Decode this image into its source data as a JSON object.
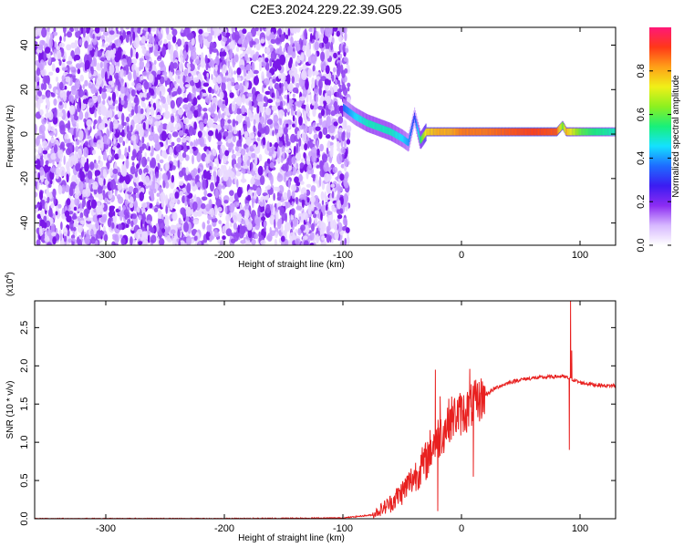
{
  "figure": {
    "title": "C2E3.2024.229.22.39.G05"
  },
  "colors": {
    "spectrogram_noise": "#7a18e8",
    "snr_line": "#e8201f",
    "colormap": [
      "#ffffff",
      "#d7b8ff",
      "#8c2cf2",
      "#3b1cf2",
      "#1e6cff",
      "#14e2ff",
      "#18f07a",
      "#8cf020",
      "#f0f018",
      "#ffa018",
      "#ff3818",
      "#ff1878"
    ]
  },
  "chart_data": [
    {
      "type": "heatmap",
      "xlabel": "Height of straight line (km)",
      "ylabel": "Frequency (Hz)",
      "xlim": [
        -360,
        130
      ],
      "ylim": [
        -50,
        48
      ],
      "xticks": [
        -300,
        -200,
        -100,
        0,
        100
      ],
      "yticks": [
        -40,
        -20,
        0,
        20,
        40
      ],
      "grid": false,
      "noise_region": {
        "x": [
          -360,
          -95
        ],
        "y": [
          -50,
          48
        ],
        "amplitude": 0.15
      },
      "signal_trace": {
        "x": [
          -100,
          -90,
          -80,
          -70,
          -60,
          -50,
          -45,
          -40,
          -35,
          -30,
          -20,
          -10,
          0,
          20,
          40,
          60,
          80,
          85,
          88,
          90,
          100,
          110,
          130
        ],
        "frequency": [
          12,
          8,
          5,
          3,
          1,
          -2,
          -4,
          8,
          -3,
          1,
          1,
          1,
          1,
          1,
          1,
          1,
          1,
          4,
          1,
          1,
          1,
          1,
          1
        ],
        "amplitude": [
          0.35,
          0.45,
          0.5,
          0.5,
          0.5,
          0.45,
          0.4,
          0.3,
          0.55,
          0.75,
          0.8,
          0.8,
          0.85,
          0.85,
          0.88,
          0.9,
          0.88,
          0.6,
          0.8,
          0.75,
          0.6,
          0.55,
          0.5
        ]
      },
      "colorbar": {
        "label": "Normalized spectral amplitude",
        "range": [
          0.0,
          1.0
        ],
        "ticks": [
          0.0,
          0.2,
          0.4,
          0.6,
          0.8
        ],
        "tick_labels": [
          "0.0",
          "0.2",
          "0.4",
          "0.6",
          "0.8"
        ]
      }
    },
    {
      "type": "line",
      "xlabel": "Height of straight line (km)",
      "ylabel": "SNR (10 * v/v)",
      "scale_label": "(x10",
      "scale_exponent": "4",
      "scale_suffix": ")",
      "xlim": [
        -360,
        130
      ],
      "ylim": [
        0.0,
        2.85
      ],
      "xticks": [
        -300,
        -200,
        -100,
        0,
        100
      ],
      "yticks": [
        0.0,
        0.5,
        1.0,
        1.5,
        2.0,
        2.5
      ],
      "ytick_labels": [
        "0.0",
        "0.5",
        "1.0",
        "1.5",
        "2.0",
        "2.5"
      ],
      "grid": false,
      "series": [
        {
          "x": [
            -360,
            -200,
            -100,
            -75,
            -60,
            -50,
            -40,
            -30,
            -25,
            -20,
            -15,
            -10,
            -5,
            0,
            5,
            10,
            15,
            20,
            30,
            40,
            50,
            60,
            70,
            80,
            85,
            88,
            90,
            92,
            94,
            100,
            110,
            120,
            130
          ],
          "y": [
            0.0,
            0.0,
            0.01,
            0.05,
            0.2,
            0.35,
            0.55,
            0.75,
            0.95,
            1.05,
            1.15,
            1.3,
            1.35,
            1.38,
            1.42,
            1.5,
            1.55,
            1.62,
            1.72,
            1.78,
            1.82,
            1.84,
            1.85,
            1.86,
            1.86,
            1.85,
            1.84,
            1.84,
            1.82,
            1.78,
            1.76,
            1.74,
            1.74
          ]
        }
      ],
      "spikes": [
        {
          "x": -22,
          "y": 1.95
        },
        {
          "x": -20,
          "y": 0.1
        },
        {
          "x": -18,
          "y": 1.6
        },
        {
          "x": 7,
          "y": 1.96
        },
        {
          "x": 10,
          "y": 0.55
        },
        {
          "x": 91,
          "y": 0.9
        },
        {
          "x": 92,
          "y": 2.85
        },
        {
          "x": 93,
          "y": 2.2
        }
      ]
    }
  ]
}
